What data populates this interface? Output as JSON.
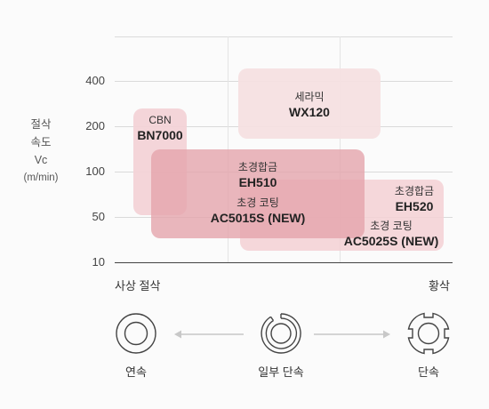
{
  "y_axis": {
    "title_lines": [
      "절삭",
      "속도",
      "Vc",
      "(m/min)"
    ],
    "ticks": [
      "400",
      "200",
      "100",
      "50",
      "10"
    ]
  },
  "x_axis": {
    "left_label": "사상 절삭",
    "right_label": "황삭"
  },
  "regions": {
    "cbn": {
      "sub": "CBN",
      "code": "BN7000",
      "color": "#f3d3d7"
    },
    "ceramic": {
      "sub": "세라믹",
      "code": "WX120",
      "color": "#f6e0e2"
    },
    "eh510": {
      "sub": "초경합금",
      "code": "EH510",
      "coat_sub": "초경 코팅",
      "coat_code": "AC5015S (NEW)",
      "color": "#e4a3aa"
    },
    "eh520": {
      "sub": "초경합금",
      "code": "EH520",
      "coat_sub": "초경 코팅",
      "coat_code": "AC5025S (NEW)",
      "color": "#f3d0d4"
    }
  },
  "modes": {
    "continuous": "연속",
    "partial": "일부 단속",
    "interrupted": "단속"
  },
  "colors": {
    "arrow": "#c8c8c8",
    "icon_stroke": "#444444"
  }
}
